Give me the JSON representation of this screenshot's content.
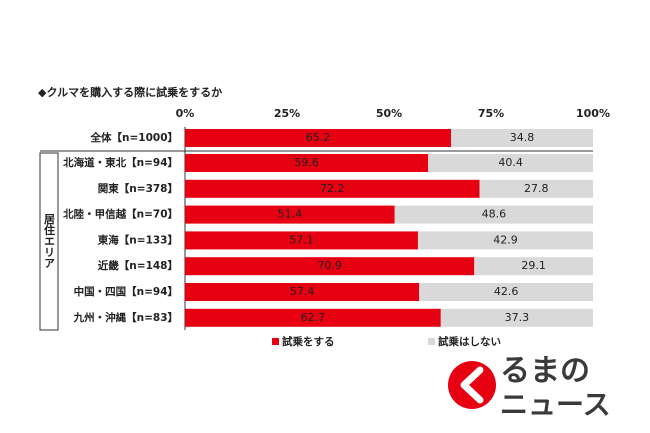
{
  "chart_data": {
    "type": "bar",
    "orientation": "horizontal",
    "stacked": true,
    "title": "◆クルマを購入する際に試乗をするか",
    "group_label": "居住エリア",
    "categories": [
      "全体【n=1000】",
      "北海道・東北【n=94】",
      "関東【n=378】",
      "北陸・甲信越【n=70】",
      "東海【n=133】",
      "近畿【n=148】",
      "中国・四国【n=94】",
      "九州・沖縄【n=83】"
    ],
    "series": [
      {
        "name": "試乗をする",
        "color": "#e60012",
        "values": [
          65.2,
          59.6,
          72.2,
          51.4,
          57.1,
          70.9,
          57.4,
          62.7
        ]
      },
      {
        "name": "試乗はしない",
        "color": "#d9d9d9",
        "values": [
          34.8,
          40.4,
          27.8,
          48.6,
          42.9,
          29.1,
          42.6,
          37.3
        ]
      }
    ],
    "xlim": [
      0,
      100
    ],
    "xticks": [
      {
        "value": 0,
        "label": "0%"
      },
      {
        "value": 25,
        "label": "25%"
      },
      {
        "value": 50,
        "label": "50%"
      },
      {
        "value": 75,
        "label": "75%"
      },
      {
        "value": 100,
        "label": "100%"
      }
    ]
  },
  "logo": {
    "text1": "るまの",
    "text2": "ニュース"
  }
}
